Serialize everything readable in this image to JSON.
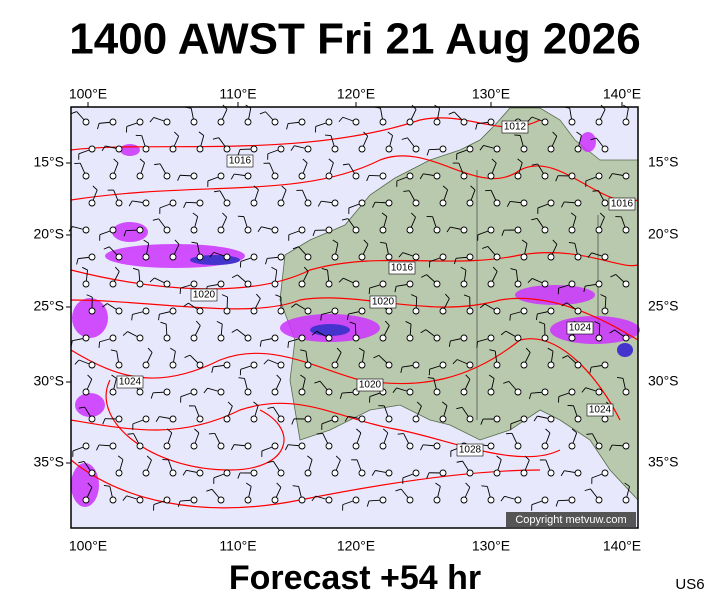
{
  "header": {
    "title": "1400 AWST Fri 21 Aug 2026"
  },
  "axes": {
    "longitude_labels": [
      "100°E",
      "110°E",
      "120°E",
      "130°E",
      "140°E"
    ],
    "latitude_labels": [
      "15°S",
      "20°S",
      "25°S",
      "30°S",
      "35°S"
    ]
  },
  "isobar_labels": [
    "1012",
    "1016",
    "1016",
    "1016",
    "1020",
    "1020",
    "1024",
    "1024",
    "1020",
    "1024",
    "1028"
  ],
  "credit": "Copyright metvuw.com",
  "footer": {
    "forecast": "Forecast +54 hr",
    "code": "US6"
  }
}
